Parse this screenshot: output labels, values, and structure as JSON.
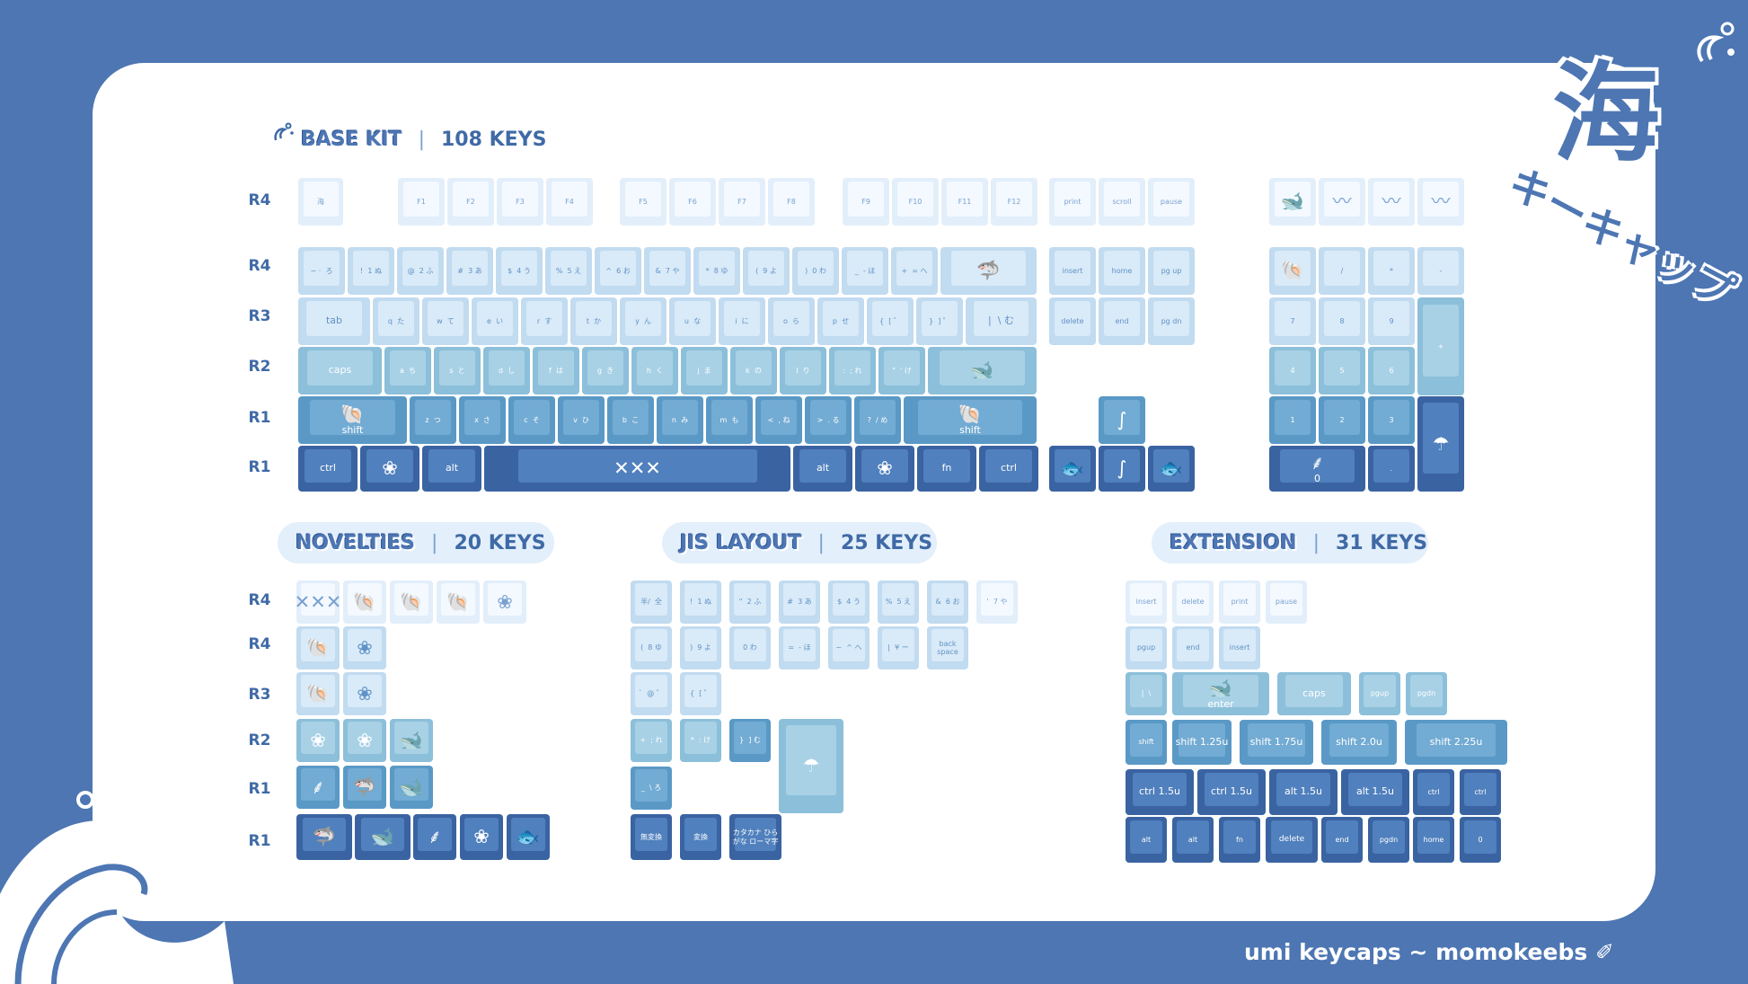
{
  "colors": {
    "frame": "#4d76b3",
    "card": "#ffffff",
    "tone_frost": "#e2eefa",
    "tone_mist": "#c1dbf0",
    "tone_sea": "#8cbfda",
    "tone_blue": "#5a99c6",
    "tone_navy": "#3a63a2",
    "heading": "#3f6aa6"
  },
  "base": {
    "name": "BASE KIT",
    "sep": "|",
    "count": "108 KEYS",
    "icon": "water-splash-icon"
  },
  "novelties": {
    "name": "NOVELTIES",
    "sep": "|",
    "count": "20 KEYS"
  },
  "jis": {
    "name": "JIS LAYOUT",
    "sep": "|",
    "count": "25 KEYS"
  },
  "extension": {
    "name": "EXTENSION",
    "sep": "|",
    "count": "31 KEYS"
  },
  "rows": {
    "base": [
      "R4",
      "R4",
      "R3",
      "R2",
      "R1",
      "R1"
    ],
    "novelties": [
      "R4",
      "R4",
      "R3",
      "R2",
      "R1",
      "R1"
    ]
  },
  "brand": {
    "text": "umi keycaps ∼ momokeebs ✐"
  },
  "logo": {
    "main": "海",
    "sub": "キーキャップ"
  },
  "keys": {
    "base": [
      [
        "海",
        "icon",
        "wave-kanji-icon"
      ],
      [
        "F1"
      ],
      [
        "F2"
      ],
      [
        "F3"
      ],
      [
        "F4"
      ],
      [
        "F5"
      ],
      [
        "F6"
      ],
      [
        "F7"
      ],
      [
        "F8"
      ],
      [
        "F9"
      ],
      [
        "F10"
      ],
      [
        "F11"
      ],
      [
        "F12"
      ],
      [
        "print"
      ],
      [
        "scroll"
      ],
      [
        "pause"
      ],
      [
        "",
        "icon",
        "whale-icon"
      ],
      [
        "",
        "icon",
        "wave-icon"
      ],
      [
        "",
        "icon",
        "wave-icon"
      ],
      [
        "",
        "icon",
        "wave-icon"
      ],
      [
        "~ ·  ろ"
      ],
      [
        "!  1 ぬ"
      ],
      [
        "@  2 ふ"
      ],
      [
        "#  3 あ"
      ],
      [
        "$  4 う"
      ],
      [
        "%  5 え"
      ],
      [
        "^  6 お"
      ],
      [
        "&  7 や"
      ],
      [
        "*  8 ゆ"
      ],
      [
        "(  9 よ"
      ],
      [
        ")  0 わ"
      ],
      [
        "_  - ほ"
      ],
      [
        "+  = へ"
      ],
      [
        "",
        "icon",
        "manta-ray-icon"
      ],
      [
        "insert"
      ],
      [
        "home"
      ],
      [
        "pg up"
      ],
      [
        "",
        "icon",
        "shell-icon"
      ],
      [
        "/"
      ],
      [
        "*"
      ],
      [
        "-"
      ],
      [
        "tab"
      ],
      [
        "q  た"
      ],
      [
        "w  て"
      ],
      [
        "e  い"
      ],
      [
        "r  す"
      ],
      [
        "t  か"
      ],
      [
        "y  ん"
      ],
      [
        "u  な"
      ],
      [
        "i  に"
      ],
      [
        "o  ら"
      ],
      [
        "p  せ"
      ],
      [
        "{  [ ゛"
      ],
      [
        "}  ] ゜"
      ],
      [
        "|  \\ む"
      ],
      [
        "delete"
      ],
      [
        "end"
      ],
      [
        "pg dn"
      ],
      [
        "7"
      ],
      [
        "8"
      ],
      [
        "9"
      ],
      [
        "+"
      ],
      [
        "caps"
      ],
      [
        "a  ち"
      ],
      [
        "s  と"
      ],
      [
        "d  し"
      ],
      [
        "f  は"
      ],
      [
        "g  き"
      ],
      [
        "h  く"
      ],
      [
        "j  ま"
      ],
      [
        "k  の"
      ],
      [
        "l  り"
      ],
      [
        ":  ; れ"
      ],
      [
        "\"  ' け"
      ],
      [
        "",
        "icon",
        "whale-icon"
      ],
      [
        "4"
      ],
      [
        "5"
      ],
      [
        "6"
      ],
      [
        "shift",
        "icon",
        "shell-icon"
      ],
      [
        "z  つ"
      ],
      [
        "x  さ"
      ],
      [
        "c  そ"
      ],
      [
        "v  ひ"
      ],
      [
        "b  こ"
      ],
      [
        "n  み"
      ],
      [
        "m  も"
      ],
      [
        "<  , ね"
      ],
      [
        ">  . る"
      ],
      [
        "?  / め"
      ],
      [
        "shift",
        "icon",
        "shell-icon"
      ],
      [
        "",
        "icon",
        "seahorse-icon"
      ],
      [
        "1"
      ],
      [
        "2"
      ],
      [
        "3"
      ],
      [
        "",
        "icon",
        "jellyfish-icon"
      ],
      [
        "ctrl"
      ],
      [
        "",
        "icon",
        "coral-icon"
      ],
      [
        "alt"
      ],
      [
        "",
        "icon",
        "pattern-icon"
      ],
      [
        "alt"
      ],
      [
        "",
        "icon",
        "coral-icon"
      ],
      [
        "fn"
      ],
      [
        "ctrl"
      ],
      [
        "",
        "icon",
        "fish-icon"
      ],
      [
        "",
        "icon",
        "seahorse-icon"
      ],
      [
        "",
        "icon",
        "fish-icon"
      ],
      [
        "0",
        "icon",
        "seaweed-icon"
      ],
      [
        "."
      ]
    ],
    "novelties": [
      [
        "",
        "icon",
        "pattern-icon"
      ],
      [
        "",
        "icon",
        "shell-icon"
      ],
      [
        "",
        "icon",
        "shell-icon"
      ],
      [
        "",
        "icon",
        "shell-icon"
      ],
      [
        "",
        "icon",
        "coral-icon"
      ],
      [
        "",
        "icon",
        "shell-icon"
      ],
      [
        "",
        "icon",
        "coral-icon"
      ],
      [
        "",
        "icon",
        "shell-icon"
      ],
      [
        "",
        "icon",
        "coral-icon"
      ],
      [
        "",
        "icon",
        "coral-icon"
      ],
      [
        "",
        "icon",
        "coral-icon"
      ],
      [
        "",
        "icon",
        "whale-icon"
      ],
      [
        "",
        "icon",
        "seaweed-icon"
      ],
      [
        "",
        "icon",
        "manta-ray-icon"
      ],
      [
        "",
        "icon",
        "whale-icon"
      ],
      [
        "",
        "icon",
        "manta-ray-icon"
      ],
      [
        "",
        "icon",
        "whale-icon"
      ],
      [
        "",
        "icon",
        "seaweed-icon"
      ],
      [
        "",
        "icon",
        "coral-icon"
      ],
      [
        "",
        "icon",
        "fish-icon"
      ]
    ],
    "jis": [
      [
        "半/  全"
      ],
      [
        "!  1 ぬ"
      ],
      [
        "\"  2 ふ"
      ],
      [
        "#  3 あ"
      ],
      [
        "$  4 う"
      ],
      [
        "%  5 え"
      ],
      [
        "&  6 お"
      ],
      [
        "'  7 や"
      ],
      [
        "(  8 ゆ"
      ],
      [
        ")  9 よ"
      ],
      [
        "0 わ"
      ],
      [
        "=  - ほ"
      ],
      [
        "~  ^ へ"
      ],
      [
        "|  ¥ ー"
      ],
      [
        "back space"
      ],
      [
        "`  @ ゛"
      ],
      [
        "{  [ ゜"
      ],
      [
        "+  ; れ"
      ],
      [
        "*  : け"
      ],
      [
        "}  ] む"
      ],
      [
        "",
        "icon",
        "jellyfish-icon"
      ],
      [
        "_  \\ ろ"
      ],
      [
        "無変換"
      ],
      [
        "変換"
      ],
      [
        "カタカナ ひらがな ローマ字"
      ]
    ],
    "extension": [
      [
        "insert"
      ],
      [
        "delete"
      ],
      [
        "print"
      ],
      [
        "pause"
      ],
      [
        "pgup"
      ],
      [
        "end"
      ],
      [
        "insert"
      ],
      [
        "|  \\"
      ],
      [
        "enter",
        "icon",
        "whale-icon"
      ],
      [
        "caps"
      ],
      [
        "pgup"
      ],
      [
        "pgdn"
      ],
      [
        "shift"
      ],
      [
        "shift 1.25u"
      ],
      [
        "shift 1.75u"
      ],
      [
        "shift 2.0u"
      ],
      [
        "shift 2.25u"
      ],
      [
        "ctrl 1.5u"
      ],
      [
        "ctrl 1.5u"
      ],
      [
        "alt 1.5u"
      ],
      [
        "alt 1.5u"
      ],
      [
        "ctrl"
      ],
      [
        "ctrl"
      ],
      [
        "alt"
      ],
      [
        "alt"
      ],
      [
        "fn"
      ],
      [
        "delete"
      ],
      [
        "end"
      ],
      [
        "pgdn"
      ],
      [
        "home"
      ],
      [
        "0"
      ]
    ]
  }
}
